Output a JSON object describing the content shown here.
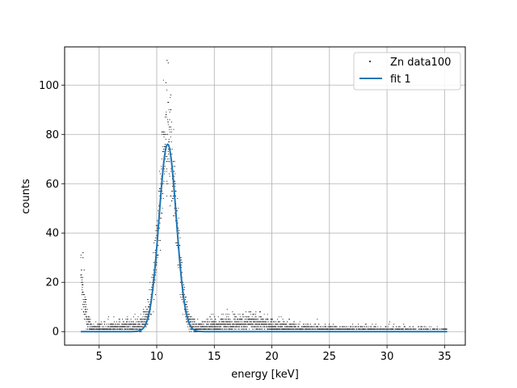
{
  "chart_data": {
    "type": "scatter",
    "title": "",
    "xlabel": "energy [keV]",
    "ylabel": "counts",
    "xlim": [
      2.0,
      36.8
    ],
    "ylim": [
      -5.5,
      115.5
    ],
    "xticks": [
      5,
      10,
      15,
      20,
      25,
      30,
      35
    ],
    "yticks": [
      0,
      20,
      40,
      60,
      80,
      100
    ],
    "grid": true,
    "legend_position": "top-right",
    "series": [
      {
        "name": "Zn data100",
        "kind": "scatter",
        "color": "#000000",
        "x_range": [
          3.4,
          35.2
        ],
        "approx_points": [
          [
            3.6,
            32
          ],
          [
            3.6,
            30
          ],
          [
            3.7,
            25
          ],
          [
            3.8,
            12
          ],
          [
            3.9,
            8
          ],
          [
            4.0,
            5
          ],
          [
            4.2,
            4
          ],
          [
            5.0,
            3
          ],
          [
            6.0,
            2
          ],
          [
            7.0,
            2
          ],
          [
            8.0,
            3
          ],
          [
            9.0,
            5
          ],
          [
            9.5,
            12
          ],
          [
            10.0,
            35
          ],
          [
            10.3,
            55
          ],
          [
            10.6,
            80
          ],
          [
            10.8,
            101
          ],
          [
            10.9,
            110
          ],
          [
            11.0,
            109
          ],
          [
            11.2,
            90
          ],
          [
            11.5,
            65
          ],
          [
            11.8,
            35
          ],
          [
            12.2,
            15
          ],
          [
            12.8,
            5
          ],
          [
            14.0,
            4
          ],
          [
            15.0,
            4
          ],
          [
            16.0,
            5
          ],
          [
            17.0,
            5
          ],
          [
            18.0,
            8
          ],
          [
            19.0,
            6
          ],
          [
            20.0,
            5
          ],
          [
            21.0,
            4
          ],
          [
            22.0,
            3
          ],
          [
            24.0,
            2
          ],
          [
            26.0,
            1
          ],
          [
            28.0,
            1
          ],
          [
            30.0,
            1
          ],
          [
            32.0,
            0
          ],
          [
            35.0,
            0
          ]
        ]
      },
      {
        "name": "fit 1",
        "kind": "line",
        "color": "#1f77b4",
        "model": "gaussian",
        "amplitude": 76,
        "center": 10.95,
        "sigma": 0.75,
        "x_range": [
          3.4,
          35.2
        ]
      }
    ]
  }
}
